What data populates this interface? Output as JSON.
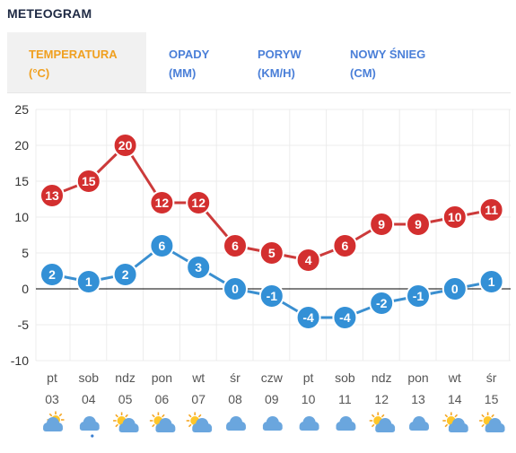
{
  "header": {
    "title": "METEOGRAM"
  },
  "tabs": [
    {
      "line1": "TEMPERATURA",
      "line2": "(°C)",
      "active": true
    },
    {
      "line1": "OPADY",
      "line2": "(MM)",
      "active": false
    },
    {
      "line1": "PORYW",
      "line2": "(KM/H)",
      "active": false
    },
    {
      "line1": "NOWY ŚNIEG",
      "line2": "(CM)",
      "active": false
    }
  ],
  "chart_data": {
    "type": "line",
    "x_days": [
      "pt",
      "sob",
      "ndz",
      "pon",
      "wt",
      "śr",
      "czw",
      "pt",
      "sob",
      "ndz",
      "pon",
      "wt",
      "śr"
    ],
    "x_dates": [
      "03",
      "04",
      "05",
      "06",
      "07",
      "08",
      "09",
      "10",
      "11",
      "12",
      "13",
      "14",
      "15"
    ],
    "yticks": [
      25,
      20,
      15,
      10,
      5,
      0,
      -5,
      -10
    ],
    "ylim": [
      -10,
      25
    ],
    "grid": true,
    "series": [
      {
        "values": [
          13,
          15,
          20,
          12,
          12,
          6,
          5,
          4,
          6,
          9,
          9,
          10,
          11
        ],
        "color": "#d32f2f",
        "line_color": "#cc3a3a"
      },
      {
        "values": [
          2,
          1,
          2,
          6,
          3,
          0,
          -1,
          -4,
          -4,
          -2,
          -1,
          0,
          1
        ],
        "color": "#3390d6",
        "line_color": "#3a8fd0"
      }
    ],
    "weather_icons": [
      "partly-cloudy-icon",
      "rain-cloud-icon",
      "sunny-cloudy-icon",
      "sunny-cloudy-icon",
      "sunny-cloudy-icon",
      "cloud-icon",
      "cloud-icon",
      "cloud-icon",
      "cloud-icon",
      "sunny-cloudy-icon",
      "cloud-icon",
      "sunny-cloudy-icon",
      "sunny-cloudy-icon"
    ]
  }
}
